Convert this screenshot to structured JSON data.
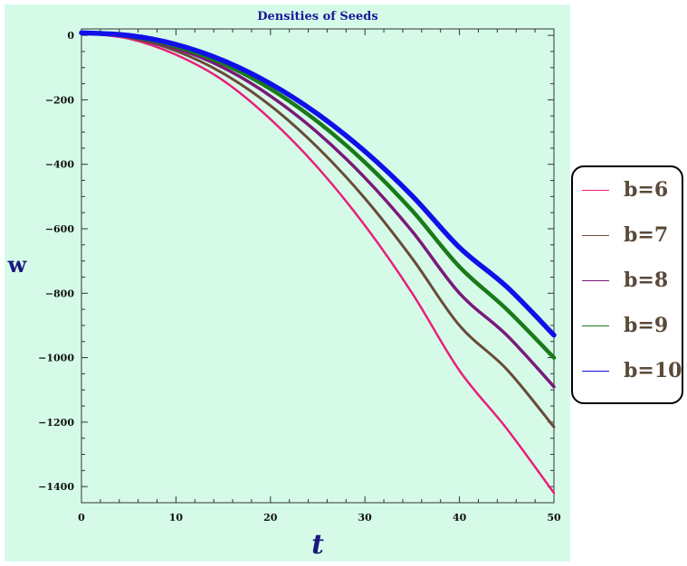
{
  "chart_data": {
    "type": "line",
    "title": "Densities of Seeds",
    "xlabel": "t",
    "ylabel": "w",
    "xlim": [
      0,
      50
    ],
    "ylim": [
      -1450,
      20
    ],
    "x_ticks": [
      0,
      10,
      20,
      30,
      40,
      50
    ],
    "y_ticks": [
      0,
      -200,
      -400,
      -600,
      -800,
      -1000,
      -1200,
      -1400
    ],
    "legend_position": "right",
    "series": [
      {
        "name": "b=6",
        "color": "#e8207a",
        "x": [
          0,
          5,
          10,
          15,
          20,
          25,
          30,
          35,
          40,
          45,
          50
        ],
        "y": [
          8,
          -10,
          -60,
          -140,
          -260,
          -410,
          -590,
          -800,
          -1040,
          -1220,
          -1420
        ]
      },
      {
        "name": "b=7",
        "color": "#6b4a3a",
        "x": [
          0,
          5,
          10,
          15,
          20,
          25,
          30,
          35,
          40,
          45,
          50
        ],
        "y": [
          8,
          -6,
          -48,
          -118,
          -218,
          -348,
          -506,
          -692,
          -900,
          -1036,
          -1215
        ]
      },
      {
        "name": "b=8",
        "color": "#7a1a7a",
        "x": [
          0,
          5,
          10,
          15,
          20,
          25,
          30,
          35,
          40,
          45,
          50
        ],
        "y": [
          8,
          -4,
          -40,
          -100,
          -188,
          -302,
          -442,
          -608,
          -800,
          -930,
          -1090
        ]
      },
      {
        "name": "b=9",
        "color": "#1a7a1a",
        "x": [
          0,
          5,
          10,
          15,
          20,
          25,
          30,
          35,
          40,
          45,
          50
        ],
        "y": [
          8,
          -2,
          -34,
          -88,
          -166,
          -268,
          -394,
          -544,
          -718,
          -850,
          -1000
        ]
      },
      {
        "name": "b=10",
        "color": "#1010e8",
        "x": [
          0,
          5,
          10,
          15,
          20,
          25,
          30,
          35,
          40,
          45,
          50
        ],
        "y": [
          8,
          0,
          -28,
          -78,
          -150,
          -244,
          -360,
          -498,
          -658,
          -780,
          -930
        ]
      }
    ]
  }
}
